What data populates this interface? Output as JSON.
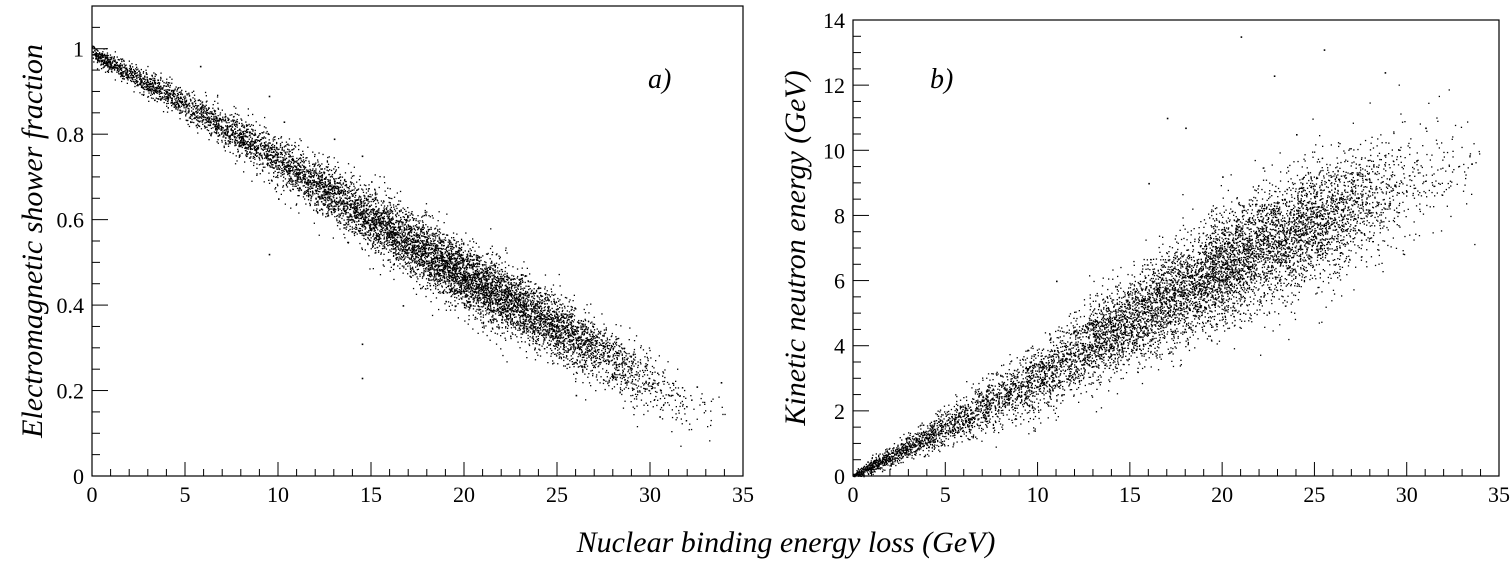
{
  "x_axis_label": "Nuclear binding energy loss (GeV)",
  "chart_data": [
    {
      "type": "scatter",
      "panel_label": "a)",
      "xlabel": "Nuclear binding energy loss (GeV)",
      "ylabel": "Electromagnetic shower fraction",
      "xlim": [
        0,
        35
      ],
      "ylim": [
        0,
        1.1
      ],
      "x_ticks": [
        0,
        5,
        10,
        15,
        20,
        25,
        30,
        35
      ],
      "y_ticks": [
        0,
        0.2,
        0.4,
        0.6,
        0.8,
        1
      ],
      "x_tick_labels": [
        "0",
        "5",
        "10",
        "15",
        "20",
        "25",
        "30",
        "35"
      ],
      "y_tick_labels": [
        "0",
        "0.2",
        "0.4",
        "0.6",
        "0.8",
        "1"
      ],
      "color": "#000000",
      "trend": {
        "x": [
          0,
          5,
          10,
          15,
          20,
          25,
          30
        ],
        "y": [
          0.99,
          0.87,
          0.74,
          0.6,
          0.47,
          0.35,
          0.22
        ]
      },
      "spread_sd": [
        0.008,
        0.018,
        0.028,
        0.035,
        0.038,
        0.038,
        0.035
      ],
      "x_density": {
        "x": [
          0,
          5,
          10,
          15,
          20,
          25,
          30,
          34
        ],
        "weight": [
          0.8,
          0.8,
          1.0,
          1.6,
          2.2,
          1.6,
          0.3,
          0.02
        ]
      },
      "outliers": {
        "x": [
          5.8,
          9.5,
          10.3,
          13,
          15,
          9.5,
          10,
          14.5,
          16.7,
          12,
          14.5,
          19,
          26,
          30.5,
          31,
          32.5,
          33.8,
          14.5
        ],
        "y": [
          0.96,
          0.89,
          0.83,
          0.79,
          0.69,
          0.52,
          0.65,
          0.23,
          0.4,
          0.69,
          0.31,
          0.41,
          0.19,
          0.14,
          0.19,
          0.21,
          0.22,
          0.75
        ]
      },
      "n_points": 9000
    },
    {
      "type": "scatter",
      "panel_label": "b)",
      "xlabel": "Nuclear binding energy loss (GeV)",
      "ylabel": "Kinetic neutron energy (GeV)",
      "xlim": [
        0,
        35
      ],
      "ylim": [
        0,
        14
      ],
      "x_ticks": [
        0,
        5,
        10,
        15,
        20,
        25,
        30,
        35
      ],
      "y_ticks": [
        0,
        2,
        4,
        6,
        8,
        10,
        12,
        14
      ],
      "x_tick_labels": [
        "0",
        "5",
        "10",
        "15",
        "20",
        "25",
        "30",
        "35"
      ],
      "y_tick_labels": [
        "0",
        "2",
        "4",
        "6",
        "8",
        "10",
        "12",
        "14"
      ],
      "color": "#000000",
      "trend": {
        "x": [
          0,
          5,
          10,
          15,
          20,
          25,
          30
        ],
        "y": [
          0,
          1.5,
          3.0,
          4.8,
          6.4,
          7.8,
          9.0
        ]
      },
      "spread_sd": [
        0.05,
        0.3,
        0.5,
        0.7,
        0.85,
        0.95,
        0.9
      ],
      "x_density": {
        "x": [
          0,
          5,
          10,
          15,
          20,
          25,
          30,
          34
        ],
        "weight": [
          0.8,
          0.8,
          1.0,
          1.6,
          2.2,
          1.6,
          0.3,
          0.02
        ]
      },
      "outliers": {
        "x": [
          21,
          25.5,
          22.8,
          28.8,
          17,
          18,
          31,
          33.5,
          16,
          11,
          20,
          24
        ],
        "y": [
          13.5,
          13.1,
          12.3,
          12.4,
          11.0,
          10.7,
          10.7,
          9.6,
          9.0,
          6.0,
          9.2,
          10.5
        ]
      },
      "n_points": 9000
    }
  ]
}
